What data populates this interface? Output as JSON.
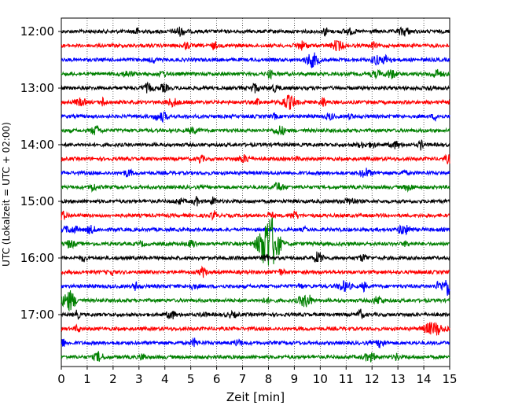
{
  "chart_data": {
    "type": "line",
    "title": "",
    "xlabel": "Zeit  [min]",
    "ylabel": "UTC (Lokalzeit = UTC + 02:00)",
    "xlim": [
      0,
      15
    ],
    "x_ticks": [
      0,
      1,
      2,
      3,
      4,
      5,
      6,
      7,
      8,
      9,
      10,
      11,
      12,
      13,
      14,
      15
    ],
    "y_tick_labels": [
      "12:00",
      "13:00",
      "14:00",
      "15:00",
      "16:00",
      "17:00"
    ],
    "grid": "vertical dotted",
    "trace_interval_minutes": 15,
    "traces_count": 24,
    "trace_colors": [
      "#000000",
      "#ff0000",
      "#0000ff",
      "#008000"
    ],
    "events": [
      {
        "hour": "15:45",
        "minute": 8.0,
        "amplitude": "large"
      },
      {
        "hour": "16:45",
        "minute": 0.3,
        "amplitude": "medium"
      },
      {
        "hour": "16:30",
        "minute": 15.0,
        "amplitude": "medium"
      },
      {
        "hour": "12:30",
        "minute": 9.7,
        "amplitude": "small"
      },
      {
        "hour": "13:15",
        "minute": 8.8,
        "amplitude": "small"
      }
    ]
  }
}
